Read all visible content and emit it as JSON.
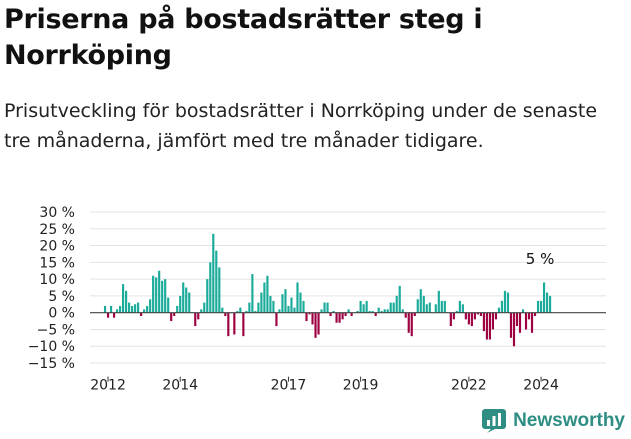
{
  "title": "Priserna på bostadsrätter steg i Norrköping",
  "subtitle": "Prisutveckling för bostadsrätter i Norrköping under de senaste tre månaderna, jämfört med tre månader tidigare.",
  "brand": "Newsworthy",
  "colors": {
    "positive": "#1aab9b",
    "negative": "#9e0142",
    "grid": "#e3e3e3",
    "zero": "#444444",
    "text": "#222222"
  },
  "chart_data": {
    "type": "bar",
    "ylim": [
      -15,
      30
    ],
    "yticks": [
      -15,
      -10,
      -5,
      0,
      5,
      10,
      15,
      20,
      25,
      30
    ],
    "ytick_labels": [
      "−15 %",
      "−10 %",
      "−5 %",
      "0 %",
      "5 %",
      "10 %",
      "15 %",
      "20 %",
      "25 %",
      "30 %"
    ],
    "xlim": [
      2011.5,
      2025.8
    ],
    "xticks": [
      2012,
      2014,
      2017,
      2019,
      2022,
      2024
    ],
    "xtick_labels": [
      "2012",
      "2014",
      "2017",
      "2019",
      "2022",
      "2024"
    ],
    "start": 2011.917,
    "step": 0.08333,
    "values": [
      2,
      -1.5,
      2,
      -1.5,
      1,
      2,
      8.5,
      6.5,
      3,
      2,
      2.5,
      3,
      -1,
      1,
      2,
      4,
      11,
      10.5,
      12.5,
      9.5,
      10,
      4.5,
      -2.5,
      -1,
      2,
      5,
      9,
      7.5,
      6,
      0,
      -4,
      -2,
      1,
      3,
      10,
      15,
      23.5,
      18.5,
      13.5,
      1.5,
      -1,
      -7,
      0,
      -6.5,
      0.5,
      1.5,
      -7,
      0.5,
      3,
      11.5,
      0.5,
      3,
      6,
      9,
      11,
      5,
      3.5,
      -4,
      1,
      5.5,
      7,
      2,
      4.5,
      1.5,
      9,
      6,
      3.5,
      -2.5,
      -0.5,
      -3.5,
      -7.5,
      -6.5,
      1,
      3,
      3,
      -1,
      0.5,
      -3,
      -3,
      -2,
      -1,
      1,
      -1,
      0,
      0.5,
      3.5,
      2.5,
      3.5,
      0.5,
      0.5,
      -1,
      1.5,
      0.5,
      1,
      1,
      3,
      3,
      5,
      8,
      1,
      -1.5,
      -6,
      -7,
      -1,
      4,
      7,
      5,
      2.5,
      3,
      0,
      2.5,
      6.5,
      3.5,
      3.5,
      0,
      -4,
      -2,
      0.5,
      3.5,
      2.5,
      -2,
      -3.5,
      -4,
      -2,
      -0.5,
      -1,
      -5.5,
      -8,
      -8,
      -5,
      -2,
      1.5,
      3.5,
      6.5,
      6,
      -7.5,
      -10,
      -4,
      -6,
      1,
      -5,
      -2,
      -6,
      -1,
      3.5,
      3.5,
      9,
      6,
      5
    ],
    "annotation": {
      "text": "5 %",
      "value": 5
    }
  }
}
